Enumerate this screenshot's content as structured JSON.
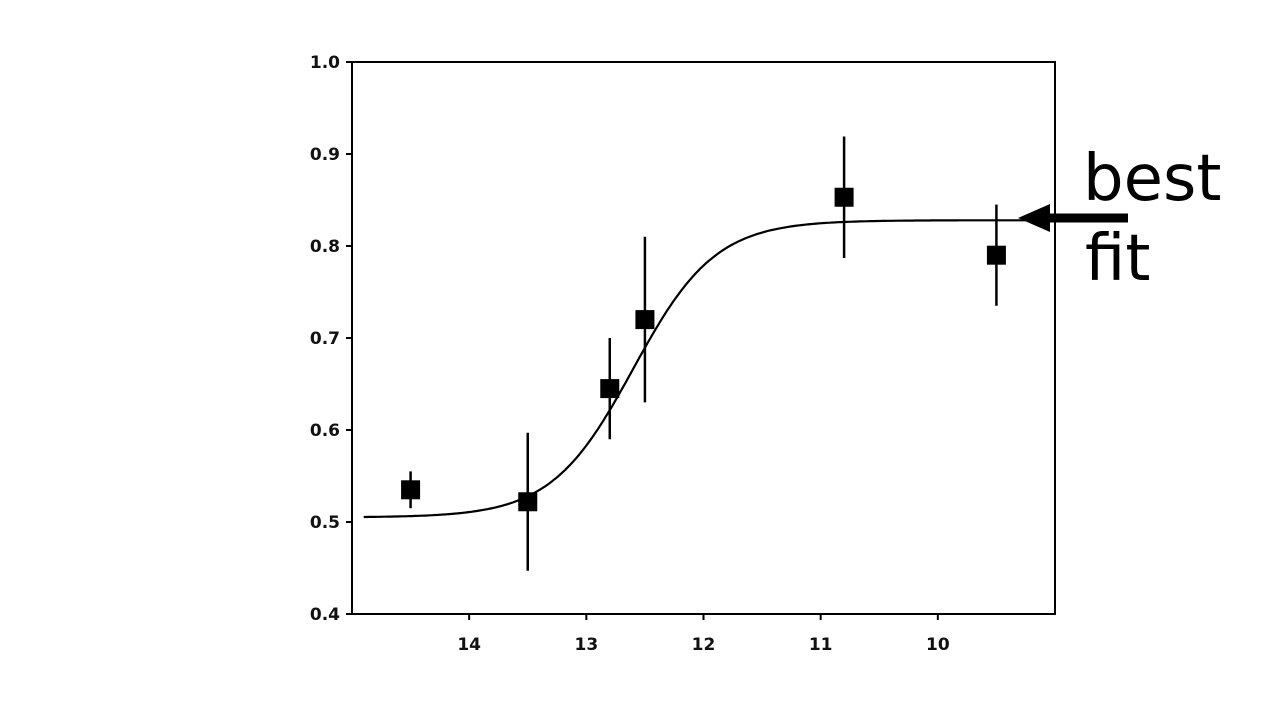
{
  "chart_data": {
    "type": "scatter",
    "title": "",
    "xlabel": "",
    "ylabel": "",
    "xlim": [
      15,
      9
    ],
    "ylim": [
      0.4,
      1.0
    ],
    "x_ticks": [
      14,
      13,
      12,
      11,
      10
    ],
    "y_ticks": [
      0.4,
      0.5,
      0.6,
      0.7,
      0.8,
      0.9,
      1.0
    ],
    "x_tick_labels": [
      "14",
      "13",
      "12",
      "11",
      "10"
    ],
    "y_tick_labels": [
      "0.4",
      "0.5",
      "0.6",
      "0.7",
      "0.8",
      "0.9",
      "1.0"
    ],
    "grid": false,
    "series": [
      {
        "points": [
          {
            "x": 14.5,
            "y": 0.535,
            "err_low": 0.02,
            "err_high": 0.02
          },
          {
            "x": 13.5,
            "y": 0.522,
            "err_low": 0.075,
            "err_high": 0.075
          },
          {
            "x": 12.8,
            "y": 0.645,
            "err_low": 0.055,
            "err_high": 0.055
          },
          {
            "x": 12.5,
            "y": 0.72,
            "err_low": 0.09,
            "err_high": 0.09
          },
          {
            "x": 10.8,
            "y": 0.853,
            "err_low": 0.066,
            "err_high": 0.066
          },
          {
            "x": 9.5,
            "y": 0.79,
            "err_low": 0.055,
            "err_high": 0.055
          }
        ]
      }
    ],
    "fit_curve": {
      "model": "logistic",
      "lower": 0.505,
      "upper": 0.828,
      "midpoint": 12.6,
      "scale": 0.35
    },
    "annotation": {
      "line1": "best",
      "line2": "fit"
    }
  }
}
